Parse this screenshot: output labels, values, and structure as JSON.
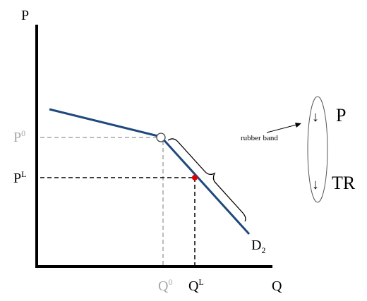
{
  "axes": {
    "y_label": "P",
    "x_label": "Q"
  },
  "price_levels": [
    {
      "base": "P",
      "sup": "0"
    },
    {
      "base": "P",
      "sup": "L"
    }
  ],
  "quantities": [
    {
      "base": "Q",
      "sup": "0"
    },
    {
      "base": "Q",
      "sup": "L"
    }
  ],
  "curve_label": {
    "base": "D",
    "sub": "2"
  },
  "annotation": "rubber band",
  "effects": [
    {
      "arrow": "↓",
      "label": "P"
    },
    {
      "arrow": "↓",
      "label": "TR"
    }
  ]
}
